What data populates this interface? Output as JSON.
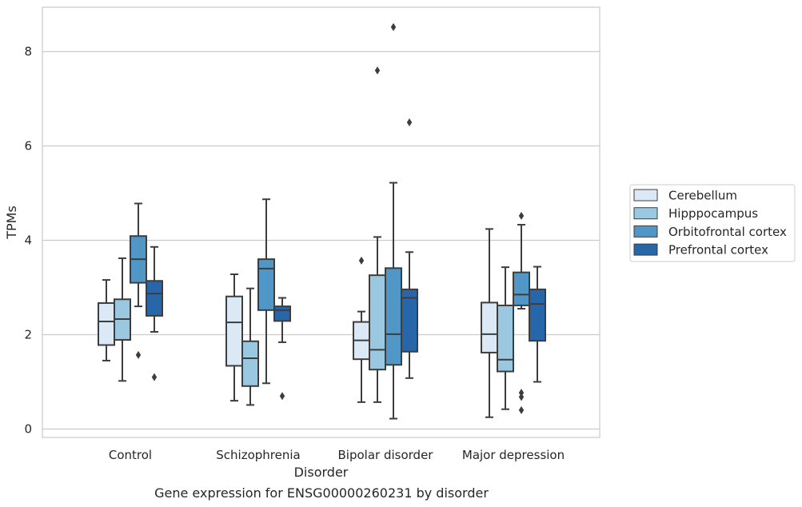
{
  "chart_data": {
    "type": "box",
    "caption": "Gene expression for ENSG00000260231 by disorder",
    "xlabel": "Disorder",
    "ylabel": "TPMs",
    "ylim": [
      -0.18,
      8.95
    ],
    "yticks": [
      0,
      2,
      4,
      6,
      8
    ],
    "grid": "horizontal",
    "legend_position": "right",
    "categories": [
      "Control",
      "Schizophrenia",
      "Bipolar disorder",
      "Major depression"
    ],
    "series": [
      {
        "name": "Cerebellum",
        "color": "#dbe9f6",
        "boxes": [
          {
            "whisker_low": 1.45,
            "q1": 1.78,
            "median": 2.28,
            "q3": 2.67,
            "whisker_high": 3.16,
            "outliers": []
          },
          {
            "whisker_low": 0.6,
            "q1": 1.34,
            "median": 2.26,
            "q3": 2.81,
            "whisker_high": 3.28,
            "outliers": []
          },
          {
            "whisker_low": 0.57,
            "q1": 1.48,
            "median": 1.88,
            "q3": 2.27,
            "whisker_high": 2.49,
            "outliers": [
              3.57
            ]
          },
          {
            "whisker_low": 0.25,
            "q1": 1.62,
            "median": 2.01,
            "q3": 2.68,
            "whisker_high": 4.24,
            "outliers": []
          }
        ]
      },
      {
        "name": "Hipppocampus",
        "color": "#9ac8e0",
        "boxes": [
          {
            "whisker_low": 1.02,
            "q1": 1.89,
            "median": 2.33,
            "q3": 2.75,
            "whisker_high": 3.62,
            "outliers": []
          },
          {
            "whisker_low": 0.51,
            "q1": 0.91,
            "median": 1.5,
            "q3": 1.86,
            "whisker_high": 2.98,
            "outliers": []
          },
          {
            "whisker_low": 0.57,
            "q1": 1.26,
            "median": 1.68,
            "q3": 3.26,
            "whisker_high": 4.07,
            "outliers": [
              7.6
            ]
          },
          {
            "whisker_low": 0.42,
            "q1": 1.22,
            "median": 1.47,
            "q3": 2.62,
            "whisker_high": 3.43,
            "outliers": []
          }
        ]
      },
      {
        "name": "Orbitofrontal cortex",
        "color": "#5097c7",
        "boxes": [
          {
            "whisker_low": 2.6,
            "q1": 3.1,
            "median": 3.6,
            "q3": 4.09,
            "whisker_high": 4.78,
            "outliers": [
              1.57
            ]
          },
          {
            "whisker_low": 0.97,
            "q1": 2.52,
            "median": 3.4,
            "q3": 3.6,
            "whisker_high": 4.87,
            "outliers": []
          },
          {
            "whisker_low": 0.22,
            "q1": 1.36,
            "median": 2.01,
            "q3": 3.41,
            "whisker_high": 5.22,
            "outliers": [
              8.52
            ]
          },
          {
            "whisker_low": 2.55,
            "q1": 2.62,
            "median": 2.85,
            "q3": 3.32,
            "whisker_high": 4.33,
            "outliers": [
              4.52,
              0.77,
              0.68,
              0.4
            ]
          }
        ]
      },
      {
        "name": "Prefrontal cortex",
        "color": "#2766a9",
        "boxes": [
          {
            "whisker_low": 2.06,
            "q1": 2.4,
            "median": 2.87,
            "q3": 3.14,
            "whisker_high": 3.86,
            "outliers": [
              1.1
            ]
          },
          {
            "whisker_low": 1.84,
            "q1": 2.29,
            "median": 2.52,
            "q3": 2.6,
            "whisker_high": 2.78,
            "outliers": [
              0.7
            ]
          },
          {
            "whisker_low": 1.08,
            "q1": 1.64,
            "median": 2.78,
            "q3": 2.96,
            "whisker_high": 3.75,
            "outliers": [
              6.5
            ]
          },
          {
            "whisker_low": 1.0,
            "q1": 1.87,
            "median": 2.65,
            "q3": 2.96,
            "whisker_high": 3.44,
            "outliers": []
          }
        ]
      }
    ]
  }
}
